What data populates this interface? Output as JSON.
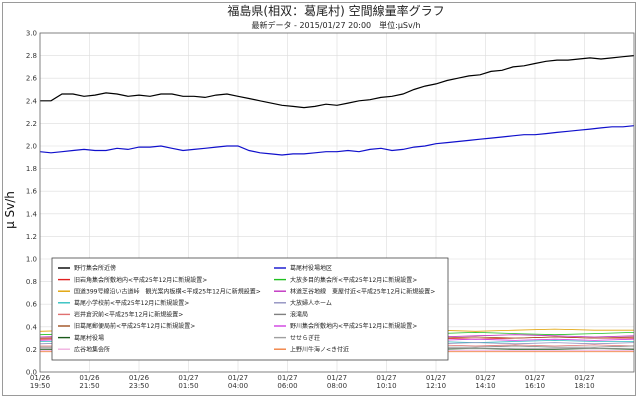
{
  "chart_data": {
    "type": "line",
    "title": "福島県(相双：葛尾村) 空間線量率グラフ",
    "subtitle": "最新データ - 2015/01/27 20:00　単位:μSv/h",
    "ylabel": "μ Sv/h",
    "xlabel": "",
    "ylim": [
      0,
      3.0
    ],
    "yticks": [
      "0.0",
      "0.2",
      "0.4",
      "0.6",
      "0.8",
      "1.0",
      "1.2",
      "1.4",
      "1.6",
      "1.8",
      "2.0",
      "2.2",
      "2.4",
      "2.6",
      "2.8",
      "3.0"
    ],
    "xticks": [
      {
        "d": "01/26",
        "t": "19:50"
      },
      {
        "d": "01/26",
        "t": "21:50"
      },
      {
        "d": "01/26",
        "t": "23:50"
      },
      {
        "d": "01/27",
        "t": "01:50"
      },
      {
        "d": "01/27",
        "t": "04:00"
      },
      {
        "d": "01/27",
        "t": "06:00"
      },
      {
        "d": "01/27",
        "t": "08:00"
      },
      {
        "d": "01/27",
        "t": "10:10"
      },
      {
        "d": "01/27",
        "t": "12:10"
      },
      {
        "d": "01/27",
        "t": "14:10"
      },
      {
        "d": "01/27",
        "t": "16:10"
      },
      {
        "d": "01/27",
        "t": "18:10"
      }
    ],
    "grid": true,
    "legend_position": "bottom-left",
    "series": [
      {
        "name": "野行集会所近傍",
        "color": "#000000",
        "width": 1.2,
        "values": [
          2.4,
          2.4,
          2.46,
          2.46,
          2.44,
          2.45,
          2.47,
          2.46,
          2.44,
          2.45,
          2.44,
          2.46,
          2.46,
          2.44,
          2.44,
          2.43,
          2.45,
          2.46,
          2.44,
          2.42,
          2.4,
          2.38,
          2.36,
          2.35,
          2.34,
          2.35,
          2.37,
          2.36,
          2.38,
          2.4,
          2.41,
          2.43,
          2.44,
          2.46,
          2.5,
          2.53,
          2.55,
          2.58,
          2.6,
          2.62,
          2.63,
          2.66,
          2.67,
          2.7,
          2.71,
          2.73,
          2.75,
          2.76,
          2.76,
          2.77,
          2.78,
          2.77,
          2.78,
          2.79,
          2.8
        ]
      },
      {
        "name": "葛尾村役場地区",
        "color": "#1010cc",
        "width": 1.2,
        "values": [
          1.95,
          1.94,
          1.95,
          1.96,
          1.97,
          1.96,
          1.96,
          1.98,
          1.97,
          1.99,
          1.99,
          2.0,
          1.98,
          1.96,
          1.97,
          1.98,
          1.99,
          2.0,
          2.0,
          1.96,
          1.94,
          1.93,
          1.92,
          1.93,
          1.93,
          1.94,
          1.95,
          1.95,
          1.96,
          1.95,
          1.97,
          1.98,
          1.96,
          1.97,
          1.99,
          2.0,
          2.02,
          2.03,
          2.04,
          2.05,
          2.06,
          2.07,
          2.08,
          2.09,
          2.1,
          2.1,
          2.11,
          2.12,
          2.13,
          2.14,
          2.15,
          2.16,
          2.17,
          2.17,
          2.18
        ]
      },
      {
        "name": "旧岩角集会所敷地内<平成25年12月に新規設置>",
        "color": "#e02020",
        "width": 0.8,
        "values": [
          0.29,
          0.3,
          0.29,
          0.3,
          0.31,
          0.3,
          0.29,
          0.3,
          0.3,
          0.31,
          0.3,
          0.29,
          0.3,
          0.31,
          0.3,
          0.3
        ]
      },
      {
        "name": "大放多目的集会所<平成25年12月に新規設置>",
        "color": "#20c020",
        "width": 0.8,
        "values": [
          0.33,
          0.34,
          0.33,
          0.35,
          0.34,
          0.33,
          0.34,
          0.35,
          0.34,
          0.33,
          0.34,
          0.35,
          0.34,
          0.33,
          0.34,
          0.35
        ]
      },
      {
        "name": "国道399号線沿い古道峠　観光案内板横<平成25年12月に新規設置>",
        "color": "#e0a000",
        "width": 0.8,
        "values": [
          0.36,
          0.37,
          0.36,
          0.37,
          0.36,
          0.38,
          0.37,
          0.36,
          0.37,
          0.38,
          0.37,
          0.36,
          0.37,
          0.38,
          0.37,
          0.37
        ]
      },
      {
        "name": "林道芝谷地線　東屋付近<平成25年12月に新規設置>",
        "color": "#c030c0",
        "width": 0.8,
        "values": [
          0.31,
          0.32,
          0.31,
          0.32,
          0.33,
          0.32,
          0.31,
          0.32,
          0.33,
          0.32,
          0.31,
          0.32,
          0.33,
          0.32,
          0.31,
          0.32
        ]
      },
      {
        "name": "葛尾小学校前<平成25年12月に新規設置>",
        "color": "#30c0c0",
        "width": 0.8,
        "values": [
          0.27,
          0.27,
          0.28,
          0.27,
          0.26,
          0.27,
          0.28,
          0.27,
          0.27,
          0.28,
          0.27,
          0.26,
          0.27,
          0.28,
          0.27,
          0.27
        ]
      },
      {
        "name": "大放婦人ホーム",
        "color": "#9090c0",
        "width": 0.8,
        "values": [
          0.25,
          0.26,
          0.25,
          0.26,
          0.25,
          0.26,
          0.25,
          0.26,
          0.25,
          0.26,
          0.25,
          0.26,
          0.25,
          0.26,
          0.25,
          0.26
        ]
      },
      {
        "name": "岩井倉沢前<平成25年12月に新規設置>",
        "color": "#e07070",
        "width": 0.8,
        "values": [
          0.23,
          0.23,
          0.24,
          0.23,
          0.24,
          0.23,
          0.24,
          0.23,
          0.24,
          0.23,
          0.24,
          0.23,
          0.24,
          0.23,
          0.24,
          0.23
        ]
      },
      {
        "name": "浪滝局",
        "color": "#808080",
        "width": 0.8,
        "values": [
          0.22,
          0.22,
          0.22,
          0.23,
          0.22,
          0.22,
          0.23,
          0.22,
          0.22,
          0.23,
          0.22,
          0.22,
          0.23,
          0.22,
          0.22,
          0.23
        ]
      },
      {
        "name": "旧葛尾郵便局前<平成25年12月に新規設置>",
        "color": "#a05020",
        "width": 0.8,
        "values": [
          0.3,
          0.31,
          0.3,
          0.31,
          0.3,
          0.31,
          0.3,
          0.31,
          0.3,
          0.31,
          0.3,
          0.31,
          0.3,
          0.31,
          0.3,
          0.31
        ]
      },
      {
        "name": "野川集会所敷地内<平成25年12月に新規設置>",
        "color": "#d040e0",
        "width": 0.8,
        "values": [
          0.28,
          0.29,
          0.28,
          0.29,
          0.28,
          0.29,
          0.28,
          0.29,
          0.28,
          0.29,
          0.28,
          0.29,
          0.28,
          0.29,
          0.28,
          0.29
        ]
      },
      {
        "name": "葛尾村役場",
        "color": "#1a5a1a",
        "width": 0.8,
        "values": [
          0.2,
          0.2,
          0.21,
          0.2,
          0.2,
          0.21,
          0.2,
          0.2,
          0.21,
          0.2,
          0.2,
          0.21,
          0.2,
          0.2,
          0.21,
          0.2
        ]
      },
      {
        "name": "せせらぎ荘",
        "color": "#a0a0a0",
        "width": 0.8,
        "values": [
          0.21,
          0.21,
          0.21,
          0.21,
          0.21,
          0.21,
          0.21,
          0.21,
          0.21,
          0.21,
          0.21,
          0.21,
          0.21,
          0.21,
          0.21,
          0.21
        ]
      },
      {
        "name": "広谷地集会所",
        "color": "#f0b0e0",
        "width": 0.8,
        "values": [
          0.19,
          0.19,
          0.19,
          0.19,
          0.19,
          0.19,
          0.19,
          0.19,
          0.19,
          0.19,
          0.19,
          0.19,
          0.19,
          0.19,
          0.19,
          0.19
        ]
      },
      {
        "name": "上野川牛海ノ<き付近",
        "color": "#f08040",
        "width": 0.8,
        "values": [
          0.18,
          0.18,
          0.18,
          0.18,
          0.18,
          0.18,
          0.18,
          0.18,
          0.18,
          0.18,
          0.18,
          0.18,
          0.18,
          0.18,
          0.18,
          0.18
        ]
      }
    ]
  }
}
